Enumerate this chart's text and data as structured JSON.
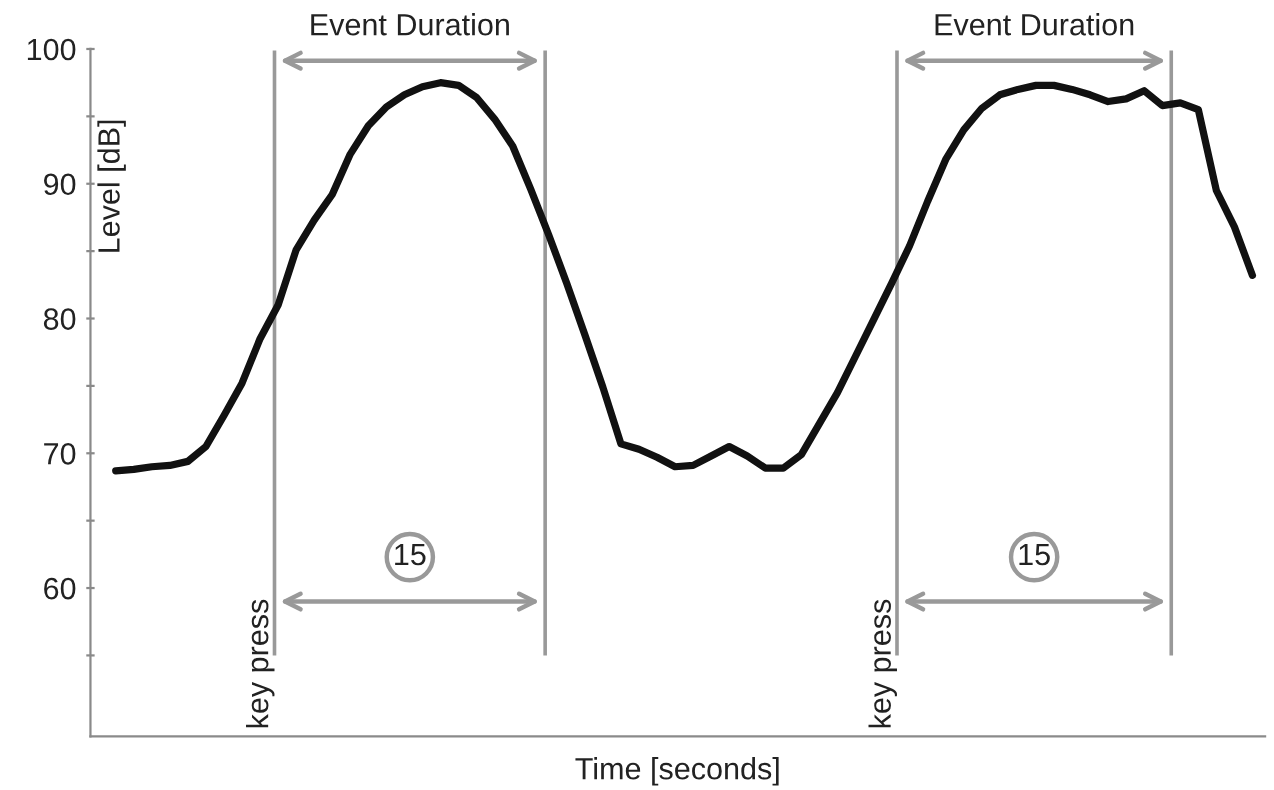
{
  "chart_data": {
    "type": "line",
    "xlabel": "Time [seconds]",
    "ylabel": "Level [dB]",
    "categories": [
      null,
      null,
      null,
      null,
      null,
      null,
      null,
      null,
      null,
      null,
      null,
      null,
      null,
      null,
      null,
      null,
      null,
      null,
      null,
      null,
      null,
      null,
      null,
      null,
      null,
      null,
      null,
      null,
      null,
      null,
      null,
      null,
      null,
      null,
      null,
      null,
      null,
      null,
      null,
      null,
      null,
      null,
      null,
      null,
      null,
      null,
      null,
      null,
      null,
      null,
      null,
      null,
      null,
      null,
      null,
      null,
      null,
      null,
      null,
      null,
      null,
      null,
      null,
      null
    ],
    "series": [
      {
        "color": "#111111",
        "values": [
          68.7,
          68.8,
          69.0,
          69.1,
          69.4,
          70.5,
          72.8,
          75.2,
          78.5,
          81.0,
          85.1,
          87.3,
          89.2,
          92.2,
          94.3,
          95.7,
          96.6,
          97.2,
          97.5,
          97.3,
          96.4,
          94.8,
          92.8,
          89.6,
          86.2,
          82.6,
          78.8,
          74.9,
          70.7,
          70.3,
          69.7,
          69.0,
          69.1,
          69.8,
          70.5,
          69.8,
          68.9,
          68.9,
          69.9,
          72.2,
          74.5,
          77.2,
          79.9,
          82.6,
          85.4,
          88.7,
          91.8,
          94.0,
          95.6,
          96.6,
          97.0,
          97.3,
          97.3,
          97.0,
          96.6,
          96.1,
          96.3,
          96.9,
          95.8,
          96.0,
          95.5,
          89.5,
          86.8,
          83.2
        ]
      }
    ],
    "ylim": [
      49,
      100
    ],
    "yticks": [
      {
        "value": 55,
        "label": null
      },
      60,
      {
        "value": 65,
        "label": null
      },
      70,
      {
        "value": 75,
        "label": null
      },
      80,
      {
        "value": 85,
        "label": null
      },
      90,
      {
        "value": 95,
        "label": null
      },
      100
    ],
    "annotations": [
      "Event Duration",
      "15",
      "key press",
      "Event Duration",
      "15",
      "key press"
    ],
    "grid": false,
    "legend": false,
    "marker": "none",
    "line_style": "solid"
  }
}
